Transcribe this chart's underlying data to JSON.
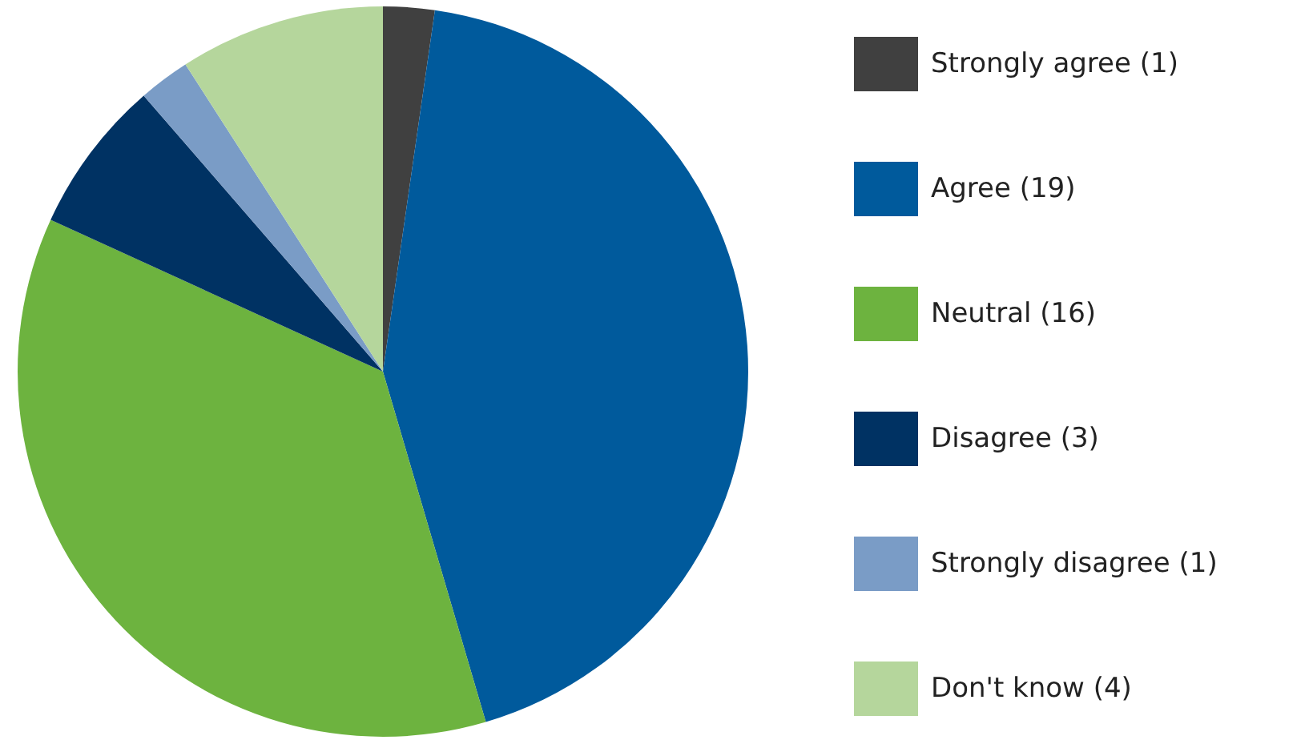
{
  "chart_data": {
    "type": "pie",
    "categories": [
      "Strongly agree (1)",
      "Agree (19)",
      "Neutral (16)",
      "Disagree (3)",
      "Strongly disagree (1)",
      "Don't know (4)"
    ],
    "values": [
      1,
      19,
      16,
      3,
      1,
      4
    ],
    "colors": [
      "#404040",
      "#005a9c",
      "#6db33f",
      "#003263",
      "#7a9cc6",
      "#b5d69c"
    ],
    "legend": "right"
  }
}
